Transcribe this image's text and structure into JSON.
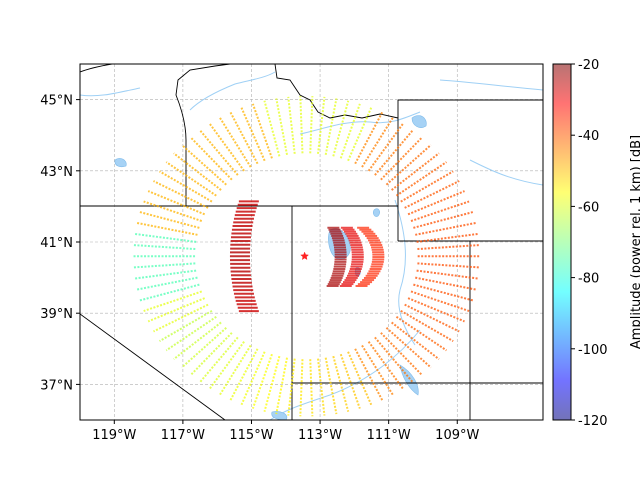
{
  "chart_data": {
    "type": "scatter",
    "title": "",
    "projection": "PlateCarree",
    "lon_range": [
      -120,
      -106.5
    ],
    "lat_range": [
      36,
      46
    ],
    "grid": true,
    "x_ticks": [
      "119°W",
      "117°W",
      "115°W",
      "113°W",
      "111°W",
      "109°W"
    ],
    "y_ticks": [
      "45°N",
      "43°N",
      "41°N",
      "39°N",
      "37°N"
    ],
    "x_tick_values": [
      -119,
      -117,
      -115,
      -113,
      -111,
      -109
    ],
    "y_tick_values": [
      45,
      43,
      41,
      39,
      37
    ],
    "source": {
      "lon": -113.45,
      "lat": 40.6,
      "marker": "star",
      "color": "#ff2222"
    },
    "colorbar": {
      "label": "Amplitude (power rel. 1 km) [dB]",
      "range": [
        -120,
        -20
      ],
      "ticks": [
        "-20",
        "-40",
        "-60",
        "-80",
        "-100",
        "-120"
      ],
      "tick_values": [
        -20,
        -40,
        -60,
        -80,
        -100,
        -120
      ],
      "colormap": "jet",
      "alpha": 0.5
    },
    "rings": [
      {
        "name": "inner-arc",
        "center_lon": -113.4,
        "center_lat": 40.6,
        "radius_deg": 2.2,
        "arc_from": 150,
        "arc_to": 210,
        "amplitude_db": -25
      },
      {
        "name": "near-field",
        "center_lon": -113.4,
        "center_lat": 40.6,
        "radius_deg": 0.5,
        "arc_from": -40,
        "arc_to": 40,
        "amplitude_db": -20
      },
      {
        "name": "outer-ring",
        "center_lon": -113.4,
        "center_lat": 40.6,
        "radius_deg": 4.9,
        "arc_from": 0,
        "arc_to": 360,
        "amplitude_db": -50
      }
    ]
  }
}
